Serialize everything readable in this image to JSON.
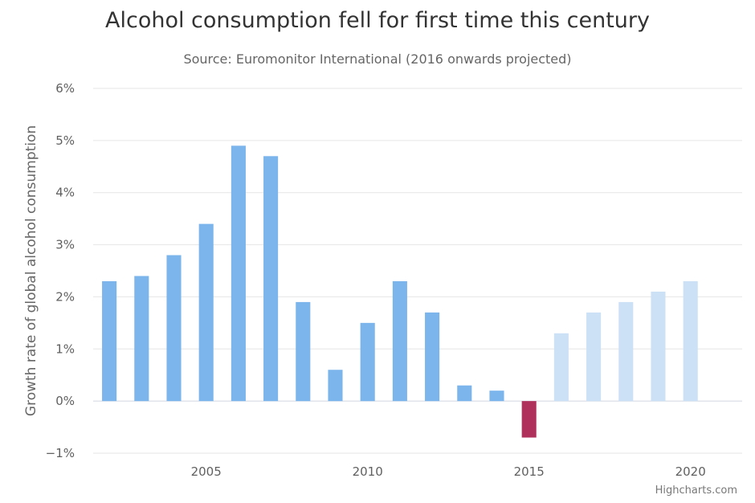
{
  "chart_data": {
    "type": "bar",
    "title": "Alcohol consumption fell for first time this century",
    "subtitle": "Source: Euromonitor International (2016 onwards projected)",
    "xlabel": "",
    "ylabel": "Growth rate of global alcohol consumption",
    "ylim": [
      -1,
      6
    ],
    "ytick_values": [
      -1,
      0,
      1,
      2,
      3,
      4,
      5,
      6
    ],
    "ytick_labels": [
      "−1%",
      "0%",
      "1%",
      "2%",
      "3%",
      "4%",
      "5%",
      "6%"
    ],
    "xtick_values": [
      2005,
      2010,
      2015,
      2020
    ],
    "xtick_labels": [
      "2005",
      "2010",
      "2015",
      "2020"
    ],
    "xlim": [
      2001.5,
      2021.6
    ],
    "x": [
      2002,
      2003,
      2004,
      2005,
      2006,
      2007,
      2008,
      2009,
      2010,
      2011,
      2012,
      2013,
      2014,
      2015,
      2016,
      2017,
      2018,
      2019,
      2020
    ],
    "values": [
      2.3,
      2.4,
      2.8,
      3.4,
      4.9,
      4.7,
      1.9,
      0.6,
      1.5,
      2.3,
      1.7,
      0.3,
      0.2,
      -0.7,
      1.3,
      1.7,
      1.9,
      2.1,
      2.3
    ],
    "grid": true,
    "colors": {
      "historical": "#7cb5ec",
      "negative": "#b0305c",
      "projected": "#cde1f6",
      "grid": "#e6e6e6",
      "zero_line": "#d0d7e0"
    },
    "projected_from": 2016,
    "credits": "Highcharts.com"
  }
}
